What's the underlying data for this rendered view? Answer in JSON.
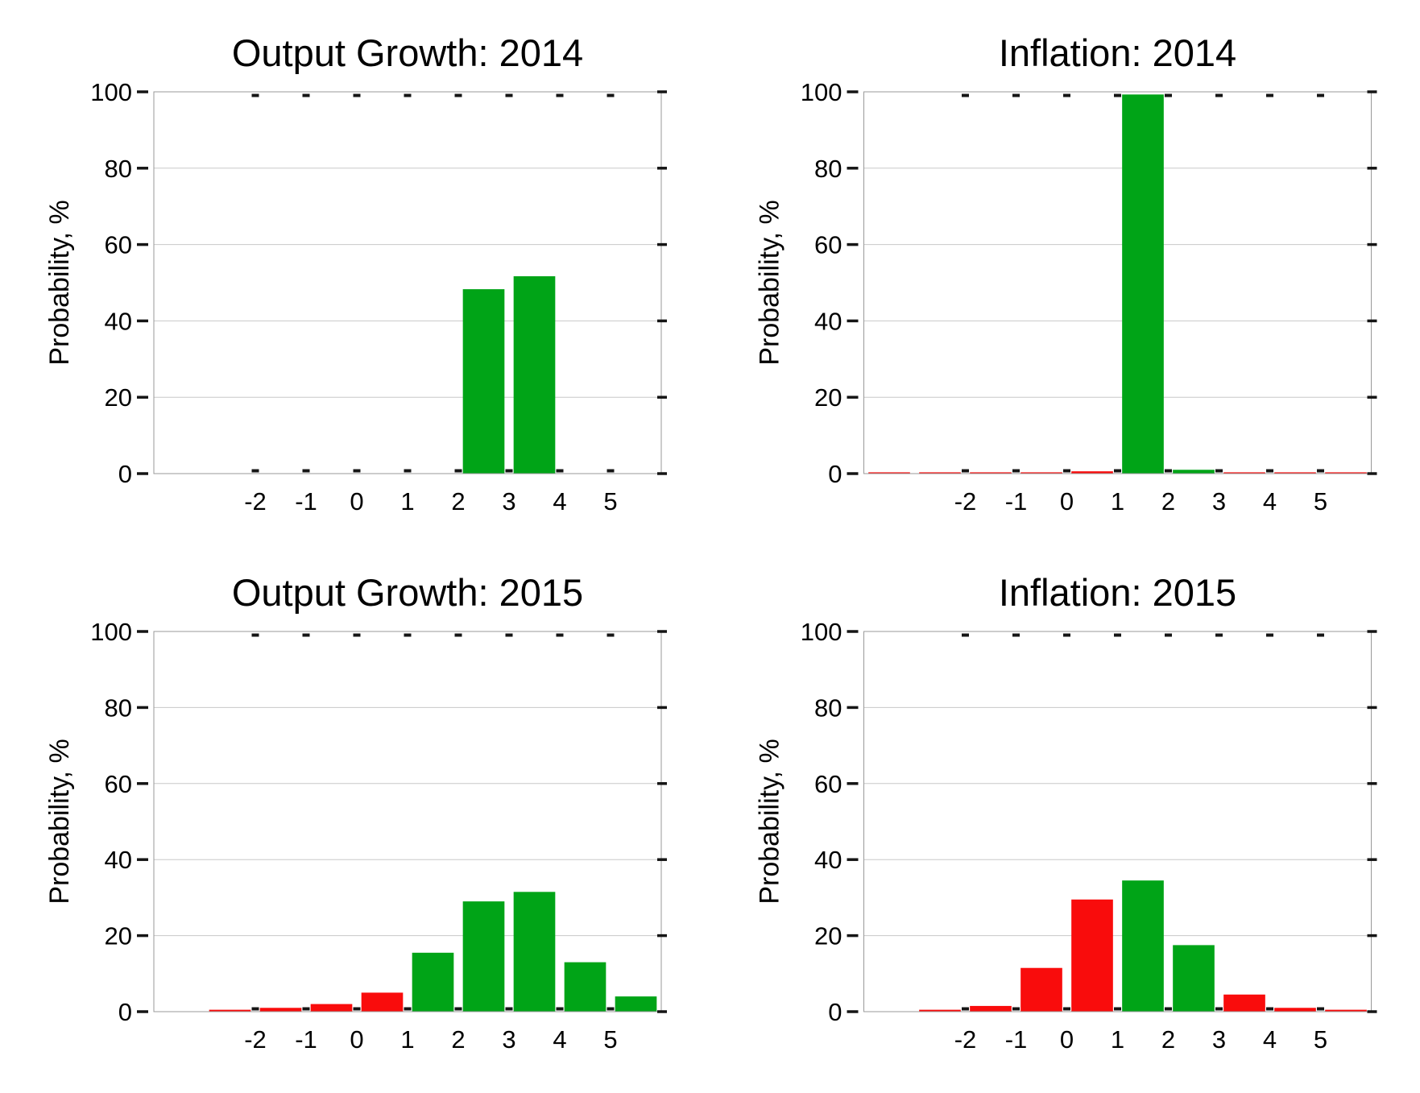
{
  "page": {
    "background": "#ffffff"
  },
  "colors": {
    "green": "#00A417",
    "red": "#F90C0C",
    "grid": "#c8c8c8",
    "axis_box": "#999999",
    "tick_mark": "#151515",
    "text": "#000000"
  },
  "chart_data": [
    {
      "id": "output-growth-2014",
      "type": "bar",
      "title": "Output Growth: 2014",
      "xlabel": "",
      "ylabel": "Probability, %",
      "xlim": [
        -4,
        6
      ],
      "ylim": [
        0,
        100
      ],
      "xticks": [
        -2,
        -1,
        0,
        1,
        2,
        3,
        4,
        5
      ],
      "yticks": [
        0,
        20,
        40,
        60,
        80,
        100
      ],
      "grid": "on",
      "bin_width": 1,
      "bar_rel_width": 0.82,
      "bins": [
        {
          "center": 2.5,
          "value": 48.3,
          "color": "green"
        },
        {
          "center": 3.5,
          "value": 51.7,
          "color": "green"
        }
      ]
    },
    {
      "id": "inflation-2014",
      "type": "bar",
      "title": "Inflation: 2014",
      "xlabel": "",
      "ylabel": "Probability, %",
      "xlim": [
        -4,
        6
      ],
      "ylim": [
        0,
        100
      ],
      "xticks": [
        -2,
        -1,
        0,
        1,
        2,
        3,
        4,
        5
      ],
      "yticks": [
        0,
        20,
        40,
        60,
        80,
        100
      ],
      "grid": "on",
      "bin_width": 1,
      "bar_rel_width": 0.82,
      "bins": [
        {
          "center": -3.5,
          "value": 0.2,
          "color": "red"
        },
        {
          "center": -2.5,
          "value": 0.2,
          "color": "red"
        },
        {
          "center": -1.5,
          "value": 0.2,
          "color": "red"
        },
        {
          "center": -0.5,
          "value": 0.2,
          "color": "red"
        },
        {
          "center": 0.5,
          "value": 0.6,
          "color": "red"
        },
        {
          "center": 1.5,
          "value": 99.3,
          "color": "green"
        },
        {
          "center": 2.5,
          "value": 1.0,
          "color": "green"
        },
        {
          "center": 3.5,
          "value": 0.2,
          "color": "red"
        },
        {
          "center": 4.5,
          "value": 0.2,
          "color": "red"
        },
        {
          "center": 5.5,
          "value": 0.2,
          "color": "red"
        }
      ]
    },
    {
      "id": "output-growth-2015",
      "type": "bar",
      "title": "Output Growth: 2015",
      "xlabel": "",
      "ylabel": "Probability, %",
      "xlim": [
        -4,
        6
      ],
      "ylim": [
        0,
        100
      ],
      "xticks": [
        -2,
        -1,
        0,
        1,
        2,
        3,
        4,
        5
      ],
      "yticks": [
        0,
        20,
        40,
        60,
        80,
        100
      ],
      "grid": "on",
      "bin_width": 1,
      "bar_rel_width": 0.82,
      "bins": [
        {
          "center": -2.5,
          "value": 0.5,
          "color": "red"
        },
        {
          "center": -1.5,
          "value": 1.0,
          "color": "red"
        },
        {
          "center": -0.5,
          "value": 2.0,
          "color": "red"
        },
        {
          "center": 0.5,
          "value": 5.0,
          "color": "red"
        },
        {
          "center": 1.5,
          "value": 15.5,
          "color": "green"
        },
        {
          "center": 2.5,
          "value": 29.0,
          "color": "green"
        },
        {
          "center": 3.5,
          "value": 31.5,
          "color": "green"
        },
        {
          "center": 4.5,
          "value": 13.0,
          "color": "green"
        },
        {
          "center": 5.5,
          "value": 4.0,
          "color": "green"
        }
      ]
    },
    {
      "id": "inflation-2015",
      "type": "bar",
      "title": "Inflation: 2015",
      "xlabel": "",
      "ylabel": "Probability, %",
      "xlim": [
        -4,
        6
      ],
      "ylim": [
        0,
        100
      ],
      "xticks": [
        -2,
        -1,
        0,
        1,
        2,
        3,
        4,
        5
      ],
      "yticks": [
        0,
        20,
        40,
        60,
        80,
        100
      ],
      "grid": "on",
      "bin_width": 1,
      "bar_rel_width": 0.82,
      "bins": [
        {
          "center": -2.5,
          "value": 0.5,
          "color": "red"
        },
        {
          "center": -1.5,
          "value": 1.5,
          "color": "red"
        },
        {
          "center": -0.5,
          "value": 11.5,
          "color": "red"
        },
        {
          "center": 0.5,
          "value": 29.5,
          "color": "red"
        },
        {
          "center": 1.5,
          "value": 34.5,
          "color": "green"
        },
        {
          "center": 2.5,
          "value": 17.5,
          "color": "green"
        },
        {
          "center": 3.5,
          "value": 4.5,
          "color": "red"
        },
        {
          "center": 4.5,
          "value": 1.0,
          "color": "red"
        },
        {
          "center": 5.5,
          "value": 0.5,
          "color": "red"
        }
      ]
    }
  ]
}
